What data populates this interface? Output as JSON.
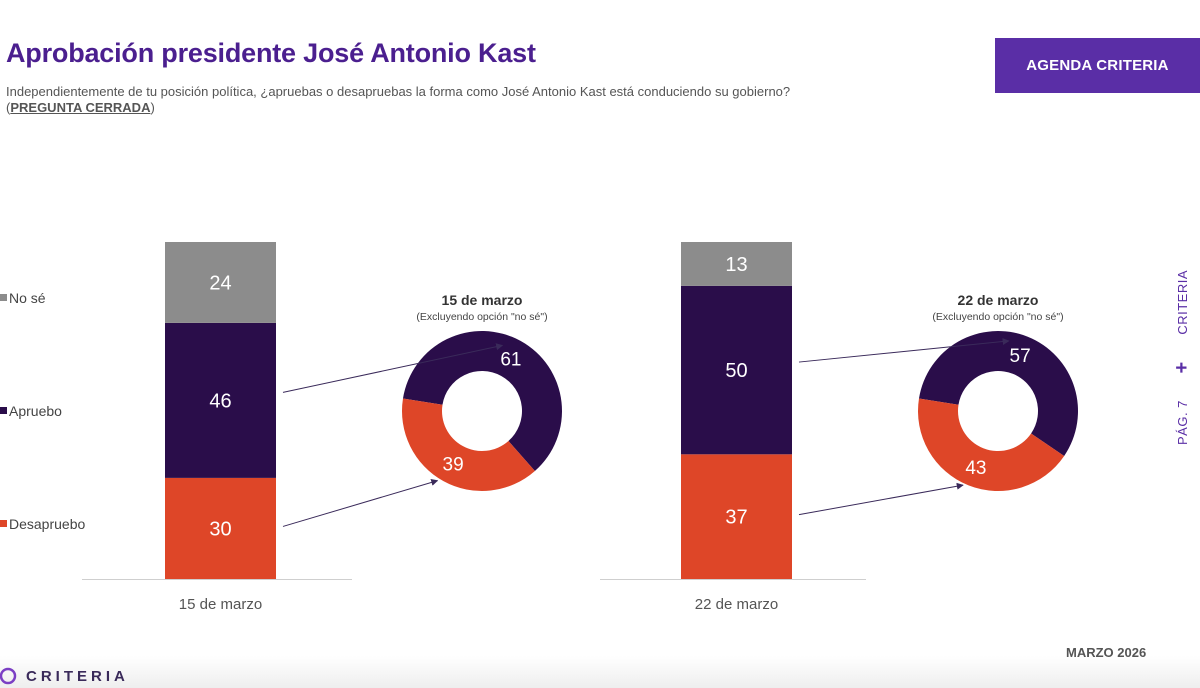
{
  "header": {
    "title": "Aprobación presidente José Antonio Kast",
    "question": "Independientemente de tu posición política, ¿apruebas o desapruebas la forma como José Antonio Kast está conduciendo su gobierno?",
    "question_tag": "PREGUNTA CERRADA",
    "brand_button": "AGENDA CRITERIA"
  },
  "side": {
    "page": "PÁG. 7",
    "plus": "+",
    "brand": "CRITERIA"
  },
  "footer": {
    "date": "MARZO 2026",
    "logo": "CRITERIA"
  },
  "colors": {
    "no_se": "#8c8c8c",
    "apruebo": "#2a0d4a",
    "desapruebo": "#de4628",
    "accent": "#5a2ea6"
  },
  "chart_data": [
    {
      "type": "bar",
      "stacked": true,
      "categories": [
        "15 de marzo",
        "22 de marzo"
      ],
      "legend": [
        "No sé",
        "Apruebo",
        "Desapruebo"
      ],
      "series": [
        {
          "name": "Desapruebo",
          "values": [
            30,
            37
          ]
        },
        {
          "name": "Apruebo",
          "values": [
            46,
            50
          ]
        },
        {
          "name": "No sé",
          "values": [
            24,
            13
          ]
        }
      ],
      "ylim": [
        0,
        100
      ]
    },
    {
      "type": "pie",
      "donut": true,
      "title": "15 de marzo",
      "subtitle": "(Excluyendo opción \"no sé\")",
      "labels": [
        "Apruebo",
        "Desapruebo"
      ],
      "values": [
        61,
        39
      ]
    },
    {
      "type": "pie",
      "donut": true,
      "title": "22 de marzo",
      "subtitle": "(Excluyendo opción \"no sé\")",
      "labels": [
        "Apruebo",
        "Desapruebo"
      ],
      "values": [
        57,
        43
      ]
    }
  ]
}
